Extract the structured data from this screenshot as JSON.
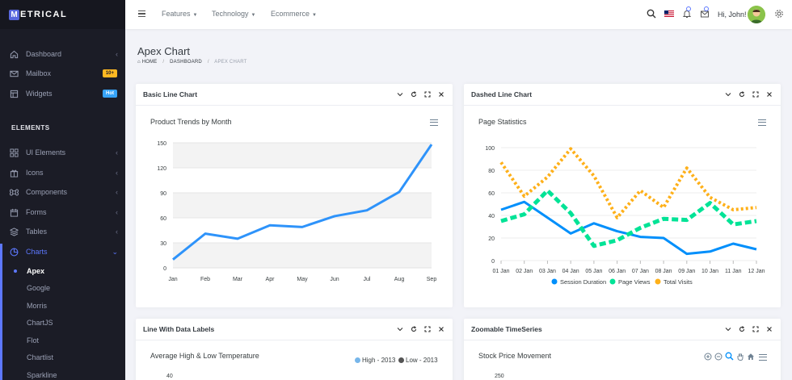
{
  "app": {
    "logo_letter": "M",
    "logo_rest": "ETRICAL"
  },
  "sidebar": {
    "items": [
      {
        "label": "Dashboard",
        "icon": "home-icon",
        "chevron": "‹"
      },
      {
        "label": "Mailbox",
        "icon": "mail-icon",
        "badge": "10+"
      },
      {
        "label": "Widgets",
        "icon": "widgets-icon",
        "badge": "Hot"
      }
    ],
    "section": "ELEMENTS",
    "elements": [
      {
        "label": "UI Elements",
        "icon": "grid-icon"
      },
      {
        "label": "Icons",
        "icon": "gift-icon"
      },
      {
        "label": "Components",
        "icon": "command-icon"
      },
      {
        "label": "Forms",
        "icon": "calendar-icon"
      },
      {
        "label": "Tables",
        "icon": "layers-icon"
      },
      {
        "label": "Charts",
        "icon": "pie-chart-icon"
      }
    ],
    "chart_items": [
      "Apex",
      "Google",
      "Morris",
      "ChartJS",
      "Flot",
      "Chartlist",
      "Sparkline"
    ]
  },
  "topbar": {
    "menus": [
      "Features",
      "Technology",
      "Ecommerce"
    ],
    "greeting": "Hi, John!"
  },
  "page": {
    "title": "Apex Chart",
    "breadcrumb": {
      "home": "HOME",
      "section": "DASHBOARD",
      "current": "APEX CHART"
    }
  },
  "cards": {
    "basic": {
      "title": "Basic Line Chart"
    },
    "dashed": {
      "title": "Dashed Line Chart"
    },
    "labels": {
      "title": "Line With Data Labels"
    },
    "zoom": {
      "title": "Zoomable TimeSeries"
    }
  },
  "colors": {
    "accent": "#5d78ff",
    "blue": "#2e93fa",
    "blue2": "#008ffb",
    "green": "#00e396",
    "orange": "#feb019"
  },
  "chart_data": [
    {
      "type": "line",
      "title": "Product Trends by Month",
      "categories": [
        "Jan",
        "Feb",
        "Mar",
        "Apr",
        "May",
        "Jun",
        "Jul",
        "Aug",
        "Sep"
      ],
      "series": [
        {
          "values": [
            10,
            41,
            35,
            51,
            49,
            62,
            69,
            91,
            148
          ]
        }
      ],
      "yticks": [
        "0",
        "30",
        "60",
        "90",
        "120",
        "150"
      ],
      "ylim": [
        0,
        150
      ],
      "grid": true
    },
    {
      "type": "line",
      "title": "Page Statistics",
      "categories": [
        "01 Jan",
        "02 Jan",
        "03 Jan",
        "04 Jan",
        "05 Jan",
        "06 Jan",
        "07 Jan",
        "08 Jan",
        "09 Jan",
        "10 Jan",
        "11 Jan",
        "12 Jan"
      ],
      "series": [
        {
          "name": "Session Duration",
          "values": [
            45,
            52,
            38,
            24,
            33,
            26,
            21,
            20,
            6,
            8,
            15,
            10
          ]
        },
        {
          "name": "Page Views",
          "values": [
            35,
            41,
            62,
            42,
            13,
            18,
            29,
            37,
            36,
            51,
            32,
            35
          ]
        },
        {
          "name": "Total Visits",
          "values": [
            87,
            57,
            74,
            99,
            75,
            38,
            62,
            47,
            82,
            56,
            45,
            47
          ]
        }
      ],
      "yticks": [
        "0",
        "20",
        "40",
        "60",
        "80",
        "100"
      ],
      "ylim": [
        0,
        100
      ],
      "legend": "bottom"
    },
    {
      "type": "line",
      "title": "Average High & Low Temperature",
      "legend_items": [
        "High - 2013",
        "Low - 2013"
      ],
      "first_ytick": "40"
    },
    {
      "type": "area",
      "title": "Stock Price Movement",
      "first_ytick": "250"
    }
  ]
}
